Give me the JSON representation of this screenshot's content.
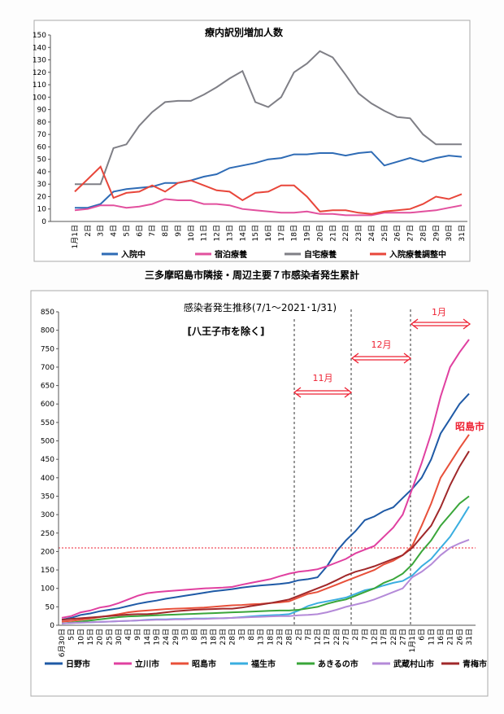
{
  "section_caption": "三多摩昭島市隣接・周辺主要７市感染者発生累計",
  "chart_data": [
    {
      "type": "line",
      "title": "療内訳別増加人数",
      "categories": [
        "1月1日",
        "2日",
        "3日",
        "4日",
        "5日",
        "6日",
        "7日",
        "8日",
        "9日",
        "10日",
        "11日",
        "12日",
        "13日",
        "14日",
        "15日",
        "16日",
        "17日",
        "18日",
        "19日",
        "20日",
        "21日",
        "22日",
        "23日",
        "24日",
        "25日",
        "26日",
        "27日",
        "28日",
        "29日",
        "30日",
        "31日"
      ],
      "series": [
        {
          "name": "入院中",
          "color": "#2e6bb5",
          "values": [
            11,
            11,
            14,
            24,
            26,
            27,
            28,
            31,
            31,
            33,
            36,
            38,
            43,
            45,
            47,
            50,
            51,
            54,
            54,
            55,
            55,
            53,
            55,
            56,
            45,
            48,
            51,
            48,
            51,
            53,
            52
          ]
        },
        {
          "name": "宿泊療養",
          "color": "#e2509e",
          "values": [
            9,
            10,
            13,
            13,
            11,
            12,
            14,
            18,
            17,
            17,
            14,
            14,
            13,
            10,
            9,
            8,
            7,
            7,
            8,
            6,
            6,
            5,
            5,
            5,
            7,
            7,
            7,
            8,
            9,
            11,
            13
          ]
        },
        {
          "name": "自宅療養",
          "color": "#7f7f86",
          "values": [
            30,
            30,
            30,
            59,
            62,
            77,
            88,
            96,
            97,
            97,
            102,
            108,
            115,
            121,
            96,
            92,
            100,
            120,
            127,
            137,
            132,
            118,
            103,
            95,
            89,
            84,
            83,
            70,
            62,
            62,
            62
          ]
        },
        {
          "name": "入院療養調整中",
          "color": "#e8463a",
          "values": [
            24,
            34,
            44,
            19,
            23,
            24,
            29,
            24,
            31,
            33,
            29,
            25,
            24,
            17,
            23,
            24,
            29,
            29,
            20,
            8,
            9,
            9,
            7,
            6,
            8,
            9,
            10,
            14,
            20,
            18,
            22
          ]
        }
      ],
      "ylim": [
        0,
        150
      ],
      "yticks": [
        0,
        10,
        20,
        30,
        40,
        50,
        60,
        70,
        80,
        90,
        100,
        110,
        120,
        130,
        140,
        150
      ]
    },
    {
      "type": "line",
      "title": "感染者発生推移(7/1～2021･1/31)",
      "annotations": [
        "[八王子市を除く]",
        "11月",
        "12月",
        "1月",
        "昭島市"
      ],
      "categories": [
        "6月30日",
        "5日",
        "10日",
        "15日",
        "20日",
        "25日",
        "30日",
        "4日",
        "9日",
        "14日",
        "19日",
        "24日",
        "29日",
        "3日",
        "8日",
        "13日",
        "18日",
        "23日",
        "28日",
        "3日",
        "8日",
        "13日",
        "18日",
        "23日",
        "28日",
        "2日",
        "7日",
        "12日",
        "17日",
        "22日",
        "27日",
        "2日",
        "7日",
        "12日",
        "17日",
        "22日",
        "27日",
        "1月1日",
        "6日",
        "11日",
        "16日",
        "21日",
        "26日",
        "31日"
      ],
      "series": [
        {
          "name": "日野市",
          "color": "#1f5aa6",
          "values": [
            15,
            20,
            28,
            32,
            38,
            42,
            46,
            52,
            58,
            63,
            67,
            72,
            76,
            80,
            84,
            88,
            92,
            95,
            98,
            102,
            105,
            108,
            110,
            112,
            115,
            122,
            125,
            130,
            160,
            200,
            230,
            255,
            285,
            295,
            310,
            320,
            345,
            370,
            400,
            450,
            520,
            560,
            600,
            628
          ]
        },
        {
          "name": "立川市",
          "color": "#e040a0",
          "values": [
            20,
            25,
            35,
            40,
            48,
            52,
            60,
            70,
            80,
            87,
            90,
            92,
            94,
            96,
            98,
            100,
            101,
            102,
            104,
            110,
            115,
            120,
            125,
            133,
            140,
            145,
            148,
            152,
            160,
            170,
            180,
            195,
            205,
            215,
            240,
            265,
            300,
            370,
            440,
            520,
            620,
            700,
            740,
            775
          ]
        },
        {
          "name": "昭島市",
          "color": "#e8503a",
          "values": [
            10,
            12,
            15,
            18,
            22,
            26,
            30,
            35,
            38,
            40,
            42,
            44,
            45,
            46,
            47,
            48,
            50,
            52,
            54,
            55,
            57,
            58,
            60,
            62,
            65,
            75,
            85,
            90,
            100,
            110,
            120,
            130,
            140,
            150,
            165,
            175,
            190,
            215,
            270,
            330,
            400,
            440,
            480,
            517
          ]
        },
        {
          "name": "福生市",
          "color": "#3aaee0",
          "values": [
            5,
            6,
            7,
            8,
            9,
            10,
            11,
            12,
            13,
            15,
            16,
            16,
            17,
            17,
            18,
            18,
            19,
            19,
            20,
            22,
            24,
            26,
            27,
            28,
            30,
            40,
            52,
            60,
            65,
            70,
            75,
            85,
            95,
            100,
            108,
            115,
            120,
            135,
            160,
            180,
            210,
            240,
            280,
            322
          ]
        },
        {
          "name": "あきるの市",
          "color": "#3aa63a",
          "values": [
            5,
            7,
            10,
            13,
            16,
            19,
            22,
            24,
            25,
            26,
            27,
            28,
            29,
            30,
            31,
            32,
            33,
            34,
            35,
            36,
            37,
            38,
            39,
            40,
            40,
            42,
            46,
            50,
            58,
            65,
            70,
            80,
            90,
            100,
            115,
            125,
            140,
            165,
            200,
            230,
            270,
            300,
            330,
            350
          ]
        },
        {
          "name": "武蔵村山市",
          "color": "#b48ad8",
          "values": [
            5,
            6,
            7,
            8,
            9,
            10,
            11,
            12,
            13,
            14,
            15,
            15,
            16,
            16,
            17,
            17,
            18,
            19,
            20,
            21,
            22,
            23,
            24,
            25,
            25,
            27,
            28,
            30,
            35,
            42,
            50,
            56,
            62,
            70,
            80,
            90,
            100,
            130,
            145,
            165,
            190,
            210,
            222,
            232
          ]
        },
        {
          "name": "青梅市",
          "color": "#a0282a",
          "values": [
            15,
            17,
            19,
            21,
            23,
            25,
            27,
            29,
            30,
            30,
            32,
            35,
            38,
            40,
            42,
            43,
            44,
            45,
            45,
            48,
            52,
            56,
            60,
            65,
            70,
            80,
            90,
            100,
            110,
            122,
            135,
            145,
            152,
            160,
            170,
            180,
            190,
            210,
            240,
            270,
            320,
            380,
            430,
            472
          ]
        }
      ],
      "ylim": [
        0,
        850
      ],
      "yticks": [
        0,
        50,
        100,
        150,
        200,
        250,
        300,
        350,
        400,
        450,
        500,
        550,
        600,
        650,
        700,
        750,
        800,
        850
      ]
    }
  ]
}
